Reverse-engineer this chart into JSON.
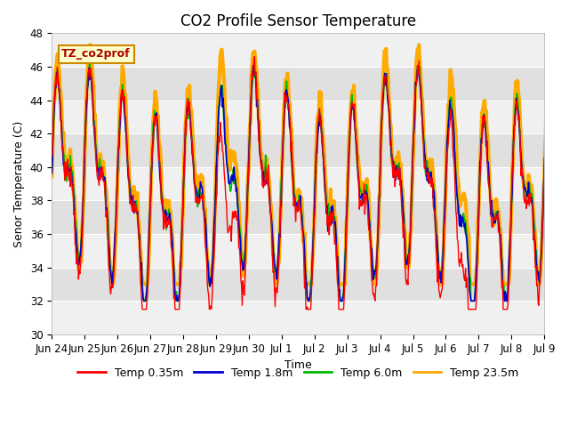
{
  "title": "CO2 Profile Sensor Temperature",
  "xlabel": "Time",
  "ylabel": "Senor Temperature (C)",
  "ylim": [
    30,
    48
  ],
  "annotation_text": "TZ_co2prof",
  "annotation_color": "#aa0000",
  "annotation_bg": "#ffffcc",
  "annotation_border": "#cc8800",
  "line_colors": {
    "Temp 0.35m": "#ff0000",
    "Temp 1.8m": "#0000cc",
    "Temp 6.0m": "#00bb00",
    "Temp 23.5m": "#ffaa00"
  },
  "line_widths": {
    "Temp 0.35m": 1.0,
    "Temp 1.8m": 1.2,
    "Temp 6.0m": 1.2,
    "Temp 23.5m": 3.0
  },
  "xtick_labels": [
    "Jun 24",
    "Jun 25",
    "Jun 26",
    "Jun 27",
    "Jun 28",
    "Jun 29",
    "Jun 30",
    "Jul 1",
    "Jul 2",
    "Jul 3",
    "Jul 4",
    "Jul 5",
    "Jul 6",
    "Jul 7",
    "Jul 8",
    "Jul 9"
  ],
  "ytick_positions": [
    30,
    32,
    34,
    36,
    38,
    40,
    42,
    44,
    46,
    48
  ],
  "title_fontsize": 12,
  "axis_fontsize": 9,
  "tick_fontsize": 8.5,
  "band_colors": [
    "#f0f0f0",
    "#e0e0e0"
  ],
  "plot_bg": "#f0f0f0"
}
